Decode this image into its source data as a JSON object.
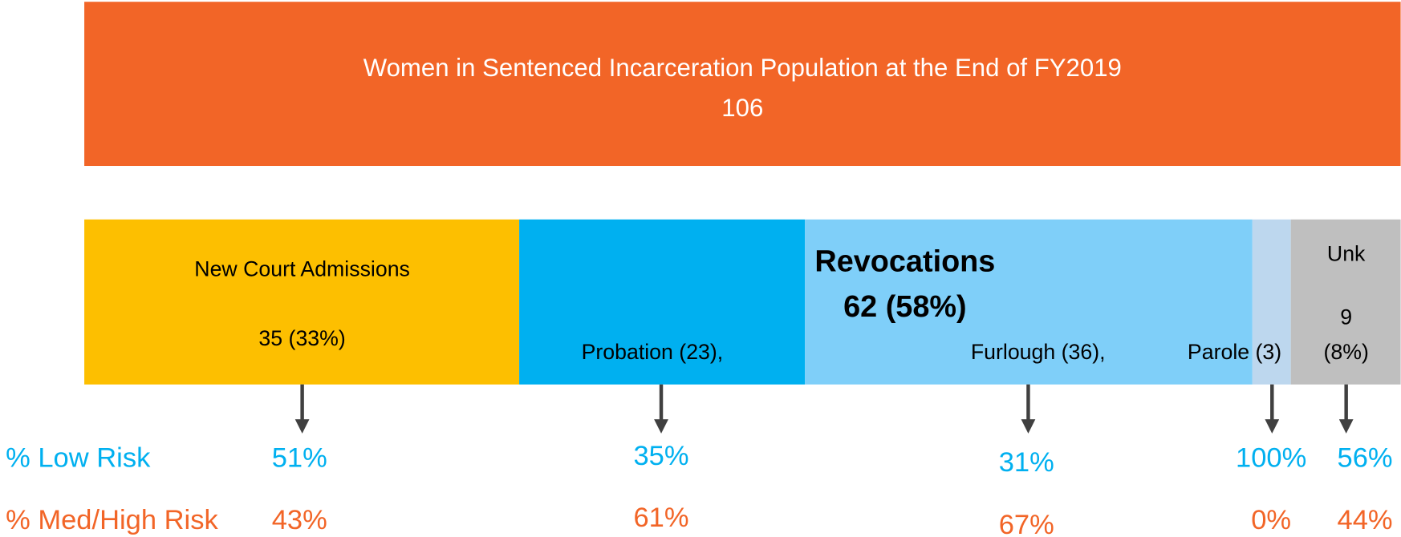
{
  "header": {
    "title": "Women in Sentenced Incarceration Population at the End of FY2019",
    "total": "106"
  },
  "segments": {
    "new_court": {
      "label": "New Court Admissions",
      "count": "35 (33%)"
    },
    "revocations": {
      "label": "Revocations",
      "count": "62 (58%)",
      "parts": [
        "Probation (23),",
        "Furlough (36),",
        "Parole (3)"
      ]
    },
    "unknown": {
      "label": "Unk",
      "count": "9",
      "share": "(8%)"
    }
  },
  "risk": {
    "rows": [
      "% Low Risk",
      "% Med/High Risk"
    ],
    "low": [
      "51%",
      "35%",
      "31%",
      "100%",
      "56%"
    ],
    "high": [
      "43%",
      "61%",
      "67%",
      "0%",
      "44%"
    ]
  }
}
